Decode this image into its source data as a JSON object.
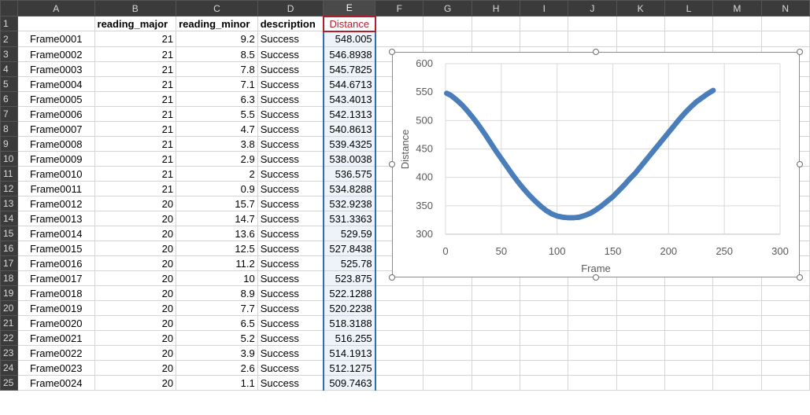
{
  "columns": [
    "A",
    "B",
    "C",
    "D",
    "E",
    "F",
    "G",
    "H",
    "I",
    "J",
    "K",
    "L",
    "M",
    "N"
  ],
  "headers": {
    "B": "reading_major",
    "C": "reading_minor",
    "D": "description",
    "E": "Distance"
  },
  "rows": [
    {
      "n": "2",
      "frame": "Frame0001",
      "major": "21",
      "minor": "9.2",
      "desc": "Success",
      "dist": "548.005"
    },
    {
      "n": "3",
      "frame": "Frame0002",
      "major": "21",
      "minor": "8.5",
      "desc": "Success",
      "dist": "546.8938"
    },
    {
      "n": "4",
      "frame": "Frame0003",
      "major": "21",
      "minor": "7.8",
      "desc": "Success",
      "dist": "545.7825"
    },
    {
      "n": "5",
      "frame": "Frame0004",
      "major": "21",
      "minor": "7.1",
      "desc": "Success",
      "dist": "544.6713"
    },
    {
      "n": "6",
      "frame": "Frame0005",
      "major": "21",
      "minor": "6.3",
      "desc": "Success",
      "dist": "543.4013"
    },
    {
      "n": "7",
      "frame": "Frame0006",
      "major": "21",
      "minor": "5.5",
      "desc": "Success",
      "dist": "542.1313"
    },
    {
      "n": "8",
      "frame": "Frame0007",
      "major": "21",
      "minor": "4.7",
      "desc": "Success",
      "dist": "540.8613"
    },
    {
      "n": "9",
      "frame": "Frame0008",
      "major": "21",
      "minor": "3.8",
      "desc": "Success",
      "dist": "539.4325"
    },
    {
      "n": "10",
      "frame": "Frame0009",
      "major": "21",
      "minor": "2.9",
      "desc": "Success",
      "dist": "538.0038"
    },
    {
      "n": "11",
      "frame": "Frame0010",
      "major": "21",
      "minor": "2",
      "desc": "Success",
      "dist": "536.575"
    },
    {
      "n": "12",
      "frame": "Frame0011",
      "major": "21",
      "minor": "0.9",
      "desc": "Success",
      "dist": "534.8288"
    },
    {
      "n": "13",
      "frame": "Frame0012",
      "major": "20",
      "minor": "15.7",
      "desc": "Success",
      "dist": "532.9238"
    },
    {
      "n": "14",
      "frame": "Frame0013",
      "major": "20",
      "minor": "14.7",
      "desc": "Success",
      "dist": "531.3363"
    },
    {
      "n": "15",
      "frame": "Frame0014",
      "major": "20",
      "minor": "13.6",
      "desc": "Success",
      "dist": "529.59"
    },
    {
      "n": "16",
      "frame": "Frame0015",
      "major": "20",
      "minor": "12.5",
      "desc": "Success",
      "dist": "527.8438"
    },
    {
      "n": "17",
      "frame": "Frame0016",
      "major": "20",
      "minor": "11.2",
      "desc": "Success",
      "dist": "525.78"
    },
    {
      "n": "18",
      "frame": "Frame0017",
      "major": "20",
      "minor": "10",
      "desc": "Success",
      "dist": "523.875"
    },
    {
      "n": "19",
      "frame": "Frame0018",
      "major": "20",
      "minor": "8.9",
      "desc": "Success",
      "dist": "522.1288"
    },
    {
      "n": "20",
      "frame": "Frame0019",
      "major": "20",
      "minor": "7.7",
      "desc": "Success",
      "dist": "520.2238"
    },
    {
      "n": "21",
      "frame": "Frame0020",
      "major": "20",
      "minor": "6.5",
      "desc": "Success",
      "dist": "518.3188"
    },
    {
      "n": "22",
      "frame": "Frame0021",
      "major": "20",
      "minor": "5.2",
      "desc": "Success",
      "dist": "516.255"
    },
    {
      "n": "23",
      "frame": "Frame0022",
      "major": "20",
      "minor": "3.9",
      "desc": "Success",
      "dist": "514.1913"
    },
    {
      "n": "24",
      "frame": "Frame0023",
      "major": "20",
      "minor": "2.6",
      "desc": "Success",
      "dist": "512.1275"
    },
    {
      "n": "25",
      "frame": "Frame0024",
      "major": "20",
      "minor": "1.1",
      "desc": "Success",
      "dist": "509.7463"
    }
  ],
  "chart_data": {
    "type": "scatter",
    "xlabel": "Frame",
    "ylabel": "Distance",
    "xlim": [
      0,
      300
    ],
    "ylim": [
      300,
      600
    ],
    "xticks": [
      "0",
      "50",
      "100",
      "150",
      "200",
      "250",
      "300"
    ],
    "yticks": [
      "300",
      "350",
      "400",
      "450",
      "500",
      "550",
      "600"
    ],
    "grid": true,
    "legend": "none",
    "marker_color": "#4a7ebb",
    "series": [
      {
        "x": [
          1,
          5,
          10,
          15,
          20,
          25,
          30,
          35,
          40,
          45,
          50,
          55,
          60,
          65,
          70,
          75,
          80,
          85,
          90,
          95,
          100,
          105,
          110,
          115,
          120,
          125,
          130,
          135,
          140,
          145,
          150,
          155,
          160,
          165,
          170,
          175,
          180,
          185,
          190,
          195,
          200,
          205,
          210,
          215,
          220,
          225,
          230,
          235,
          240
        ],
        "y": [
          548,
          544,
          536,
          527,
          516,
          504,
          491,
          477,
          462,
          447,
          433,
          419,
          405,
          392,
          380,
          369,
          359,
          350,
          342,
          336,
          332,
          330,
          329,
          329,
          330,
          333,
          337,
          343,
          350,
          358,
          366,
          376,
          386,
          397,
          407,
          419,
          431,
          443,
          455,
          467,
          479,
          491,
          503,
          514,
          524,
          533,
          540,
          547,
          553
        ]
      }
    ]
  }
}
